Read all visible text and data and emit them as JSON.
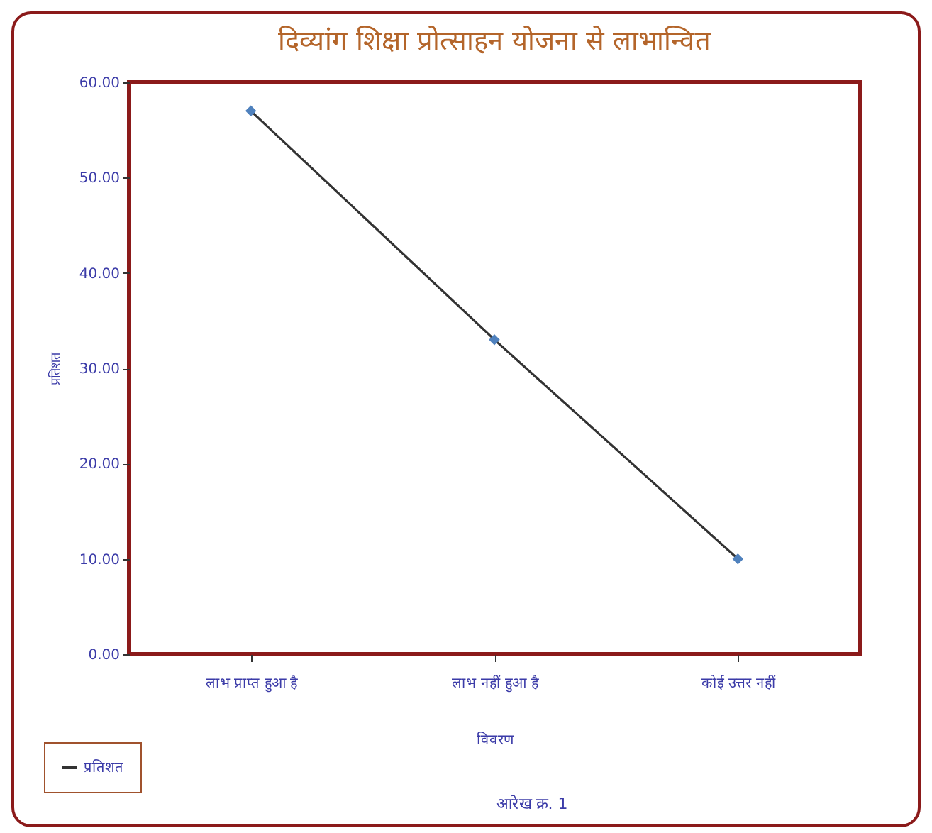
{
  "chart_data": {
    "type": "line",
    "title": "दिव्यांग शिक्षा प्रोत्साहन योजना से लाभान्वित",
    "xlabel": "विवरण",
    "ylabel": "प्रतिशत",
    "categories": [
      "लाभ प्राप्त हुआ है",
      "लाभ नहीं हुआ है",
      "कोई उत्तर नहीं"
    ],
    "series": [
      {
        "name": "प्रतिशत",
        "color": "#333333",
        "values": [
          57,
          33,
          10
        ]
      }
    ],
    "ylim": [
      0,
      60
    ],
    "yticks": [
      {
        "value": 0,
        "label": "0.00"
      },
      {
        "value": 10,
        "label": "10.00"
      },
      {
        "value": 20,
        "label": "20.00"
      },
      {
        "value": 30,
        "label": "30.00"
      },
      {
        "value": 40,
        "label": "40.00"
      },
      {
        "value": 50,
        "label": "50.00"
      },
      {
        "value": 60,
        "label": "60.00"
      }
    ],
    "marker": "diamond",
    "legend": "bottom left",
    "grid": false,
    "annotations": [
      "आरेख क्र. 1"
    ]
  }
}
